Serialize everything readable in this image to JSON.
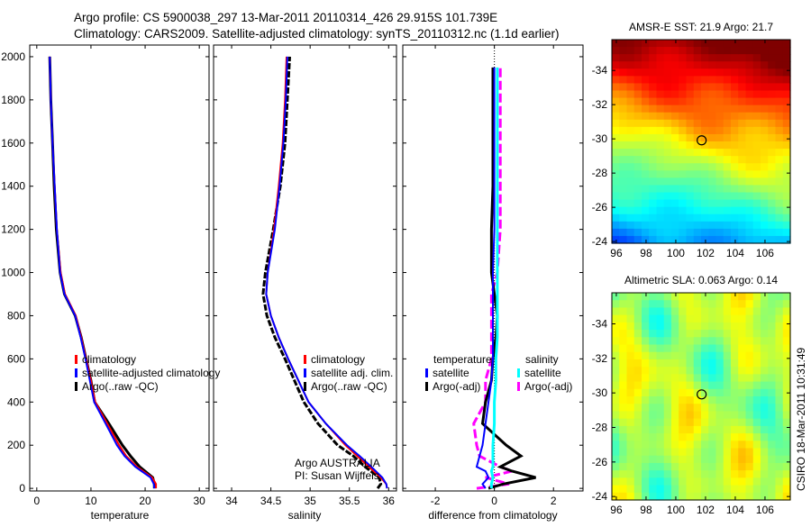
{
  "title_line1": "Argo profile: CS 5900038_297 13-Mar-2011 20110314_426 29.915S 101.739E",
  "title_line2": "Climatology: CARS2009. Satellite-adjusted climatology: synTS_20110312.nc (1.1d earlier)",
  "side_stamp": "CSIRO 18-Mar-2011 10:31:49",
  "colors": {
    "climatology": "#ff0000",
    "satellite": "#0000ff",
    "argo": "#000000",
    "sal_satellite": "#00ffff",
    "sal_argo": "#ff00ff"
  },
  "chart_data": [
    {
      "type": "line",
      "xlabel": "temperature",
      "ylabel": "",
      "xlim": [
        -1.3,
        31.8
      ],
      "ylim": [
        2054,
        -12
      ],
      "xticks": [
        "0",
        "10",
        "20",
        "30"
      ],
      "xtick_values": [
        0,
        10,
        20,
        30
      ],
      "yticks": [
        "0",
        "200",
        "400",
        "600",
        "800",
        "1000",
        "1200",
        "1400",
        "1600",
        "1800",
        "2000"
      ],
      "ytick_values": [
        0,
        200,
        400,
        600,
        800,
        1000,
        1200,
        1400,
        1600,
        1800,
        2000
      ],
      "legend": [
        "climatology",
        "satellite-adjusted climatology",
        "Argo(..raw -QC)"
      ],
      "depth": [
        0,
        20,
        50,
        100,
        150,
        200,
        300,
        400,
        500,
        600,
        700,
        800,
        900,
        1000,
        1200,
        1400,
        1600,
        1800,
        2000
      ],
      "series": [
        {
          "name": "climatology",
          "values": [
            22,
            22,
            21.3,
            18.5,
            16.5,
            15.2,
            13,
            10.8,
            10,
            9.1,
            8.2,
            7.2,
            5.2,
            4.4,
            3.7,
            3.3,
            2.9,
            2.6,
            2.4
          ]
        },
        {
          "name": "satellite-adjusted climatology",
          "values": [
            21.7,
            21.6,
            21,
            18.2,
            16.2,
            14.8,
            12.7,
            10.6,
            9.8,
            9,
            8.1,
            7.1,
            5.1,
            4.3,
            3.7,
            3.3,
            2.9,
            2.6,
            2.4
          ]
        },
        {
          "name": "Argo(..raw -QC)",
          "values": [
            21.7,
            21.7,
            21.4,
            19,
            17.3,
            15.8,
            13.3,
            10.7,
            10,
            9.1,
            8.2,
            7.1,
            5.1,
            4.3,
            3.6,
            3.2,
            2.9,
            2.6,
            2.4
          ]
        }
      ]
    },
    {
      "type": "line",
      "xlabel": "salinity",
      "xlim": [
        33.77,
        36.1
      ],
      "ylim": [
        2054,
        -12
      ],
      "xticks": [
        "34",
        "34.5",
        "35",
        "35.5",
        "36"
      ],
      "xtick_values": [
        34,
        34.5,
        35,
        35.5,
        36
      ],
      "legend": [
        "climatology",
        "satellite adj. clim.",
        "Argo(..raw -QC)"
      ],
      "annotation": [
        "Argo AUSTRALIA",
        "PI: Susan Wijffels"
      ],
      "depth": [
        0,
        20,
        50,
        100,
        150,
        200,
        300,
        400,
        500,
        600,
        700,
        800,
        900,
        1000,
        1200,
        1400,
        1600,
        1800,
        2000
      ],
      "series": [
        {
          "name": "climatology",
          "values": [
            35.98,
            35.97,
            35.9,
            35.75,
            35.6,
            35.45,
            35.2,
            34.98,
            34.85,
            34.72,
            34.6,
            34.5,
            34.44,
            34.46,
            34.54,
            34.6,
            34.65,
            34.68,
            34.7
          ]
        },
        {
          "name": "satellite adj. clim.",
          "values": [
            35.98,
            35.97,
            35.92,
            35.78,
            35.63,
            35.47,
            35.2,
            34.98,
            34.85,
            34.72,
            34.6,
            34.5,
            34.44,
            34.46,
            34.55,
            34.61,
            34.66,
            34.69,
            34.71
          ]
        },
        {
          "name": "Argo(..raw -QC)",
          "values": [
            35.86,
            35.9,
            35.88,
            35.7,
            35.55,
            35.35,
            35.1,
            34.92,
            34.8,
            34.68,
            34.55,
            34.45,
            34.4,
            34.43,
            34.53,
            34.62,
            34.68,
            34.71,
            34.74
          ]
        }
      ]
    },
    {
      "type": "line",
      "xlabel": "difference from climatology",
      "xlim": [
        -3.1,
        3.0
      ],
      "ylim": [
        2054,
        -12
      ],
      "xticks": [
        "-2",
        "0",
        "2"
      ],
      "xtick_values": [
        -2,
        0,
        2
      ],
      "legend_temperature": {
        "title": "temperature",
        "items": [
          "satellite",
          "Argo(-adj)"
        ]
      },
      "legend_salinity": {
        "title": "salinity",
        "items": [
          "satellite",
          "Argo(-adj)"
        ]
      },
      "depth": [
        0,
        20,
        50,
        80,
        100,
        150,
        200,
        300,
        400,
        500,
        600,
        700,
        800,
        900,
        1000,
        1200,
        1400,
        1600,
        1800,
        1950
      ],
      "series": [
        {
          "name": "temperature satellite",
          "values": [
            -0.3,
            -0.4,
            -0.2,
            -0.3,
            -0.6,
            -0.5,
            -0.4,
            -0.3,
            -0.2,
            -0.1,
            -0.05,
            -0.05,
            -0.05,
            -0.05,
            -0.05,
            0,
            0,
            0,
            0,
            0
          ]
        },
        {
          "name": "temperature Argo(-adj)",
          "values": [
            -0.2,
            0.3,
            1.4,
            0.6,
            0.2,
            0.9,
            0.4,
            -0.4,
            -0.3,
            -0.1,
            -0.05,
            0.05,
            0.1,
            0,
            -0.1,
            -0.1,
            -0.05,
            -0.05,
            -0.05,
            -0.05
          ]
        },
        {
          "name": "salinity satellite",
          "values": [
            -0.1,
            -0.1,
            -0.05,
            -0.1,
            -0.05,
            -0.05,
            -0.05,
            0,
            0,
            0.05,
            0.05,
            0.1,
            0.1,
            0.1,
            0.1,
            0.1,
            0.1,
            0.1,
            0.1,
            0.1
          ]
        },
        {
          "name": "salinity Argo(-adj)",
          "values": [
            -0.6,
            0.5,
            -0.3,
            0.6,
            0.2,
            -0.5,
            -0.6,
            -0.7,
            -0.3,
            -0.3,
            -0.1,
            -0.1,
            -0.1,
            -0.1,
            0.1,
            0.2,
            0.2,
            0.2,
            0.2,
            0.2
          ]
        }
      ]
    },
    {
      "type": "heatmap",
      "title": "AMSR-E SST: 21.9 Argo: 21.7",
      "xlim": [
        95.7,
        107.7
      ],
      "ylim": [
        -35.8,
        -23.9
      ],
      "xticks": [
        "96",
        "98",
        "100",
        "102",
        "104",
        "106"
      ],
      "xtick_values": [
        96,
        98,
        100,
        102,
        104,
        106
      ],
      "yticks": [
        "-24",
        "-26",
        "-28",
        "-30",
        "-32",
        "-34"
      ],
      "ytick_values": [
        -24,
        -26,
        -28,
        -30,
        -32,
        -34
      ],
      "marker": {
        "lon": 101.739,
        "lat": -29.915
      }
    },
    {
      "type": "heatmap",
      "title": "Altimetric SLA: 0.063 Argo: 0.14",
      "xlim": [
        95.7,
        107.7
      ],
      "ylim": [
        -35.8,
        -23.8
      ],
      "xticks": [
        "96",
        "98",
        "100",
        "102",
        "104",
        "106"
      ],
      "xtick_values": [
        96,
        98,
        100,
        102,
        104,
        106
      ],
      "yticks": [
        "-24",
        "-26",
        "-28",
        "-30",
        "-32",
        "-34"
      ],
      "ytick_values": [
        -24,
        -26,
        -28,
        -30,
        -32,
        -34
      ],
      "marker": {
        "lon": 101.739,
        "lat": -29.915
      }
    }
  ]
}
